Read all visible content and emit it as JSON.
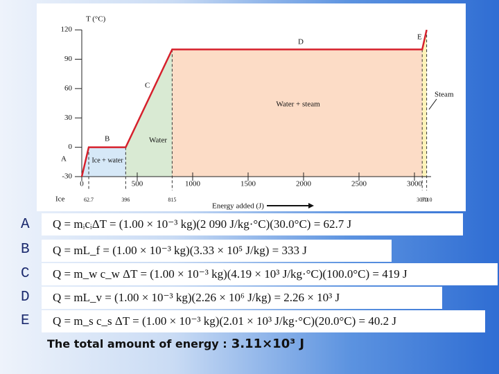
{
  "chart_data": {
    "type": "line",
    "y_label": "T (°C)",
    "x_label": "Energy added (J)",
    "x": [
      0,
      62.7,
      396,
      815,
      3070,
      3110
    ],
    "values": [
      -30,
      0,
      0,
      100,
      100,
      120
    ],
    "color": "#d6202c",
    "xlim": [
      0,
      3150
    ],
    "ylim": [
      -30,
      130
    ],
    "xticks": [
      0,
      500,
      1000,
      1500,
      2000,
      2500,
      3000
    ],
    "yticks": [
      -30,
      0,
      30,
      60,
      90,
      120
    ],
    "region_colors": [
      "#d6e8f7",
      "#d6e8f7",
      "#d9ead3",
      "#fcdcc6",
      "#fdf3b8"
    ],
    "regions": [
      {
        "letter": "A",
        "phase": "Ice"
      },
      {
        "letter": "B",
        "phase": "Ice + water"
      },
      {
        "letter": "C",
        "phase": "Water"
      },
      {
        "letter": "D",
        "phase": "Water + steam"
      },
      {
        "letter": "E",
        "phase": "Steam"
      }
    ]
  },
  "equations": [
    {
      "label": "A :",
      "text": "Q = mᵢcᵢΔT = (1.00 × 10⁻³ kg)(2 090 J/kg·°C)(30.0°C) = 62.7 J"
    },
    {
      "label": "B :",
      "text": "Q = mL_f = (1.00 × 10⁻³ kg)(3.33 × 10⁵ J/kg) = 333 J"
    },
    {
      "label": "C :",
      "text": "Q = m_w c_w ΔT = (1.00 × 10⁻³ kg)(4.19 × 10³ J/kg·°C)(100.0°C) = 419 J"
    },
    {
      "label": "D :",
      "text": "Q = mL_v = (1.00 × 10⁻³ kg)(2.26 × 10⁶ J/kg) = 2.26 × 10³ J"
    },
    {
      "label": "E :",
      "text": "Q = m_s c_s ΔT = (1.00 × 10⁻³ kg)(2.01 × 10³ J/kg·°C)(20.0°C) = 40.2 J"
    }
  ],
  "total": {
    "text": "The total amount of energy :",
    "value": "3.11×10³ J"
  }
}
